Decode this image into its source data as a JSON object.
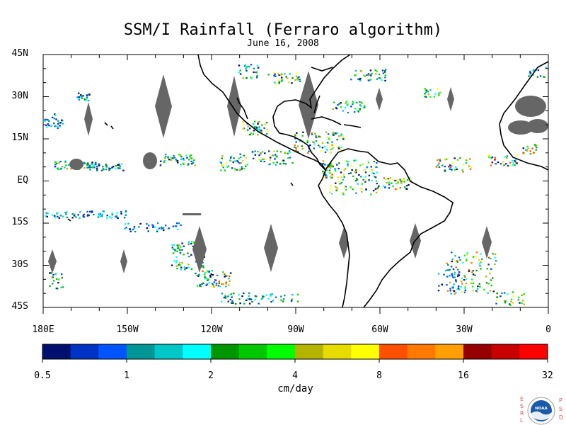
{
  "title": "SSM/I Rainfall (Ferraro algorithm)",
  "subtitle": "June 16, 2008",
  "map": {
    "lon_range": [
      180,
      360
    ],
    "lat_range": [
      -45,
      45
    ],
    "lat_labels": [
      "45N",
      "30N",
      "15N",
      "EQ",
      "15S",
      "30S",
      "45S"
    ],
    "lon_labels": [
      "180E",
      "150W",
      "120W",
      "90W",
      "60W",
      "30W",
      "0"
    ],
    "missing_data_color": "#666666",
    "coastline_color": "#000000"
  },
  "colorbar": {
    "units": "cm/day",
    "tick_labels": [
      "0.5",
      "1",
      "2",
      "4",
      "8",
      "16",
      "32"
    ],
    "colors": [
      "#00106e",
      "#0032c4",
      "#0055ff",
      "#009696",
      "#00c8c8",
      "#00ffff",
      "#009600",
      "#00c800",
      "#00ff00",
      "#b4b400",
      "#e6dc00",
      "#ffff00",
      "#ff5000",
      "#ff7800",
      "#ffa000",
      "#960000",
      "#c80000",
      "#ff0000"
    ]
  },
  "logo": {
    "left_letters": [
      "E",
      "S",
      "R",
      "L"
    ],
    "right_letters": [
      "P",
      "S",
      "D"
    ],
    "emblem_text": "NOAA",
    "accent_color": "#e05050",
    "emblem_color": "#1a5aa8"
  }
}
